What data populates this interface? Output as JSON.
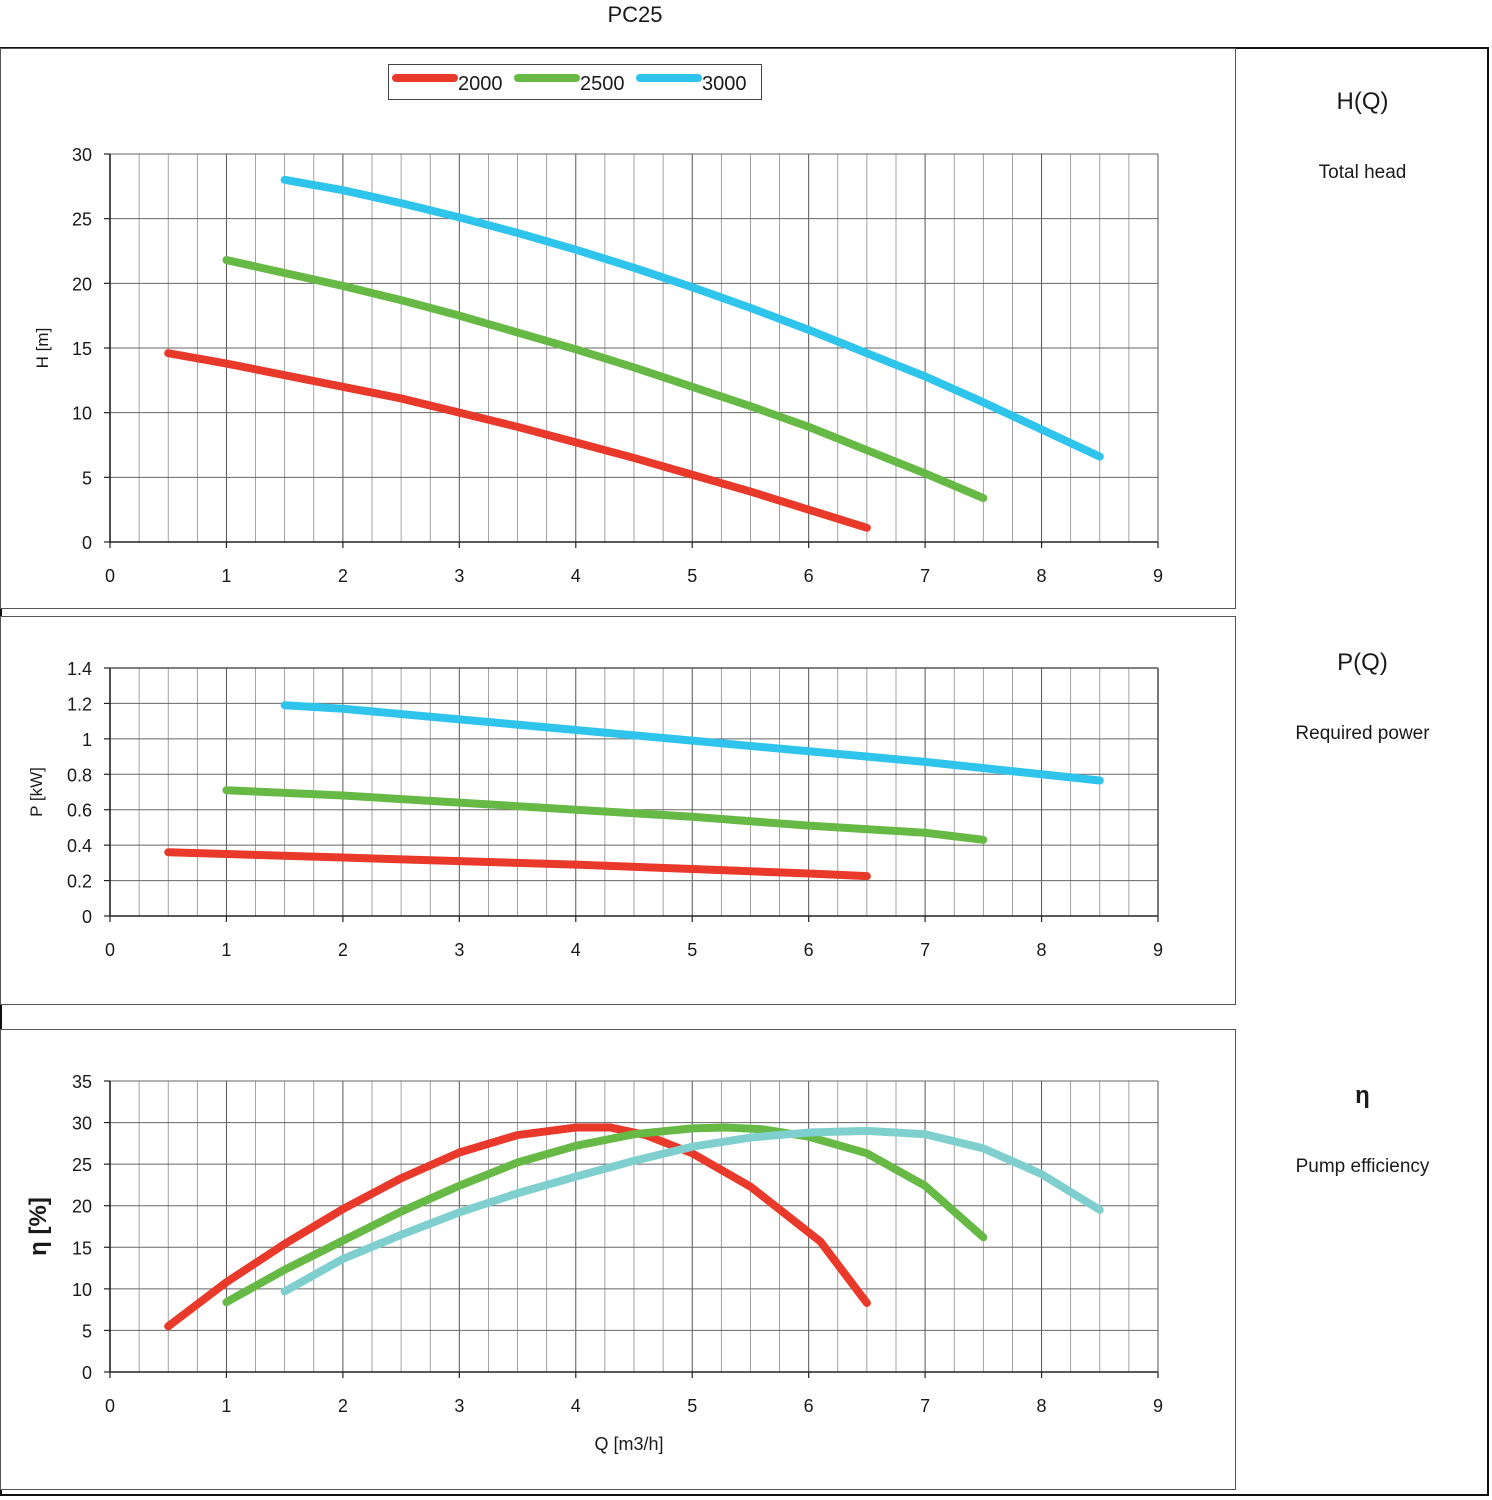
{
  "page": {
    "title": "PC25"
  },
  "side": {
    "head_title": "H(Q)",
    "head_sub": "Total head",
    "power_title": "P(Q)",
    "power_sub": "Required power",
    "eff_title": "η",
    "eff_sub": "Pump efficiency"
  },
  "colors": {
    "2000": "#e8392b",
    "2500": "#66b944",
    "3000": "#2ec4ec",
    "3000_eff": "#7fcfcf"
  },
  "chart_data": [
    {
      "type": "line",
      "id": "head",
      "title": "",
      "xlabel": "",
      "ylabel": "H [m]",
      "xlim": [
        0,
        9
      ],
      "ylim": [
        0,
        30
      ],
      "xticks": [
        "0",
        "1",
        "2",
        "3",
        "4",
        "5",
        "6",
        "7",
        "8",
        "9"
      ],
      "yticks": [
        "0",
        "5",
        "10",
        "15",
        "20",
        "25",
        "30"
      ],
      "grid": true,
      "legend": {
        "placement": "top-center",
        "entries": [
          "2000",
          "2500",
          "3000"
        ]
      },
      "series": [
        {
          "name": "2000",
          "x": [
            0.5,
            1,
            1.5,
            2,
            2.5,
            3,
            3.5,
            4,
            4.5,
            5,
            5.5,
            6,
            6.5
          ],
          "y": [
            14.6,
            13.8,
            12.9,
            12,
            11.1,
            10,
            8.9,
            7.7,
            6.5,
            5.2,
            3.9,
            2.5,
            1.1
          ]
        },
        {
          "name": "2500",
          "x": [
            1,
            1.5,
            2,
            2.5,
            3,
            3.5,
            4,
            4.5,
            5,
            5.5,
            6,
            6.5,
            7,
            7.5
          ],
          "y": [
            21.8,
            20.8,
            19.8,
            18.7,
            17.5,
            16.2,
            14.9,
            13.5,
            12,
            10.5,
            8.9,
            7.1,
            5.3,
            3.4
          ]
        },
        {
          "name": "3000",
          "x": [
            1.5,
            2,
            2.5,
            3,
            3.5,
            4,
            4.5,
            5,
            5.5,
            6,
            6.5,
            7,
            7.5,
            8,
            8.5
          ],
          "y": [
            28,
            27.2,
            26.2,
            25.1,
            23.9,
            22.6,
            21.2,
            19.7,
            18.1,
            16.4,
            14.6,
            12.8,
            10.8,
            8.7,
            6.6
          ]
        }
      ]
    },
    {
      "type": "line",
      "id": "power",
      "title": "",
      "xlabel": "",
      "ylabel": "P [kW]",
      "xlim": [
        0,
        9
      ],
      "ylim": [
        0,
        1.4
      ],
      "xticks": [
        "0",
        "1",
        "2",
        "3",
        "4",
        "5",
        "6",
        "7",
        "8",
        "9"
      ],
      "yticks": [
        "0",
        "0.2",
        "0.4",
        "0.6",
        "0.8",
        "1",
        "1.2",
        "1.4"
      ],
      "grid": true,
      "series": [
        {
          "name": "2000",
          "x": [
            0.5,
            1,
            2,
            3,
            4,
            5,
            6,
            6.5
          ],
          "y": [
            0.36,
            0.35,
            0.33,
            0.31,
            0.29,
            0.265,
            0.24,
            0.225
          ]
        },
        {
          "name": "2500",
          "x": [
            1,
            2,
            3,
            4,
            5,
            6,
            7,
            7.5
          ],
          "y": [
            0.71,
            0.68,
            0.64,
            0.6,
            0.56,
            0.51,
            0.47,
            0.43
          ]
        },
        {
          "name": "3000",
          "x": [
            1.5,
            2,
            3,
            4,
            5,
            6,
            7,
            8,
            8.5
          ],
          "y": [
            1.19,
            1.17,
            1.11,
            1.05,
            0.99,
            0.93,
            0.87,
            0.8,
            0.765
          ]
        }
      ]
    },
    {
      "type": "line",
      "id": "efficiency",
      "title": "",
      "xlabel": "Q [m3/h]",
      "ylabel": "η [%]",
      "xlim": [
        0,
        9
      ],
      "ylim": [
        0,
        35
      ],
      "xticks": [
        "0",
        "1",
        "2",
        "3",
        "4",
        "5",
        "6",
        "7",
        "8",
        "9"
      ],
      "yticks": [
        "0",
        "5",
        "10",
        "15",
        "20",
        "25",
        "30",
        "35"
      ],
      "grid": true,
      "series": [
        {
          "name": "2000",
          "x": [
            0.5,
            1,
            1.5,
            2,
            2.5,
            3,
            3.5,
            4,
            4.3,
            4.6,
            5,
            5.5,
            5.8,
            6.1,
            6.5
          ],
          "y": [
            5.5,
            10.8,
            15.4,
            19.6,
            23.3,
            26.4,
            28.5,
            29.4,
            29.4,
            28.5,
            26.3,
            22.3,
            19,
            15.7,
            8.3
          ]
        },
        {
          "name": "2500",
          "x": [
            1,
            1.5,
            2,
            2.5,
            3,
            3.5,
            4,
            4.5,
            5,
            5.3,
            5.6,
            6,
            6.5,
            7,
            7.5
          ],
          "y": [
            8.4,
            12.3,
            15.8,
            19.3,
            22.4,
            25.2,
            27.2,
            28.6,
            29.3,
            29.4,
            29.2,
            28.3,
            26.3,
            22.4,
            16.2
          ]
        },
        {
          "name": "3000",
          "x": [
            1.5,
            2,
            2.5,
            3,
            3.5,
            4,
            4.5,
            5,
            5.5,
            6,
            6.5,
            7,
            7.5,
            8,
            8.5
          ],
          "y": [
            9.7,
            13.6,
            16.5,
            19.2,
            21.5,
            23.5,
            25.4,
            27.1,
            28.2,
            28.8,
            29,
            28.6,
            26.9,
            23.8,
            19.5
          ]
        }
      ]
    }
  ]
}
